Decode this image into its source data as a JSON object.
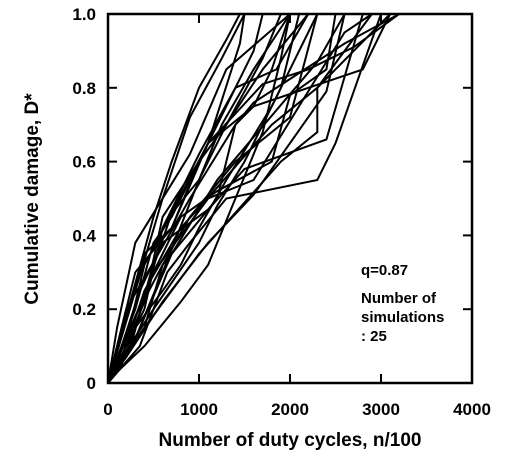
{
  "chart_data": {
    "type": "line",
    "title": "",
    "xlabel": "Number of duty cycles, n/100",
    "ylabel": "Cumulative damage, D*",
    "xlim": [
      0,
      4000
    ],
    "ylim": [
      0,
      1.0
    ],
    "x_ticks": [
      "0",
      "1000",
      "2000",
      "3000",
      "4000"
    ],
    "y_ticks": [
      "0",
      "0.2",
      "0.4",
      "0.6",
      "0.8",
      "1.0"
    ],
    "grid": false,
    "annotations": {
      "q": "q=0.87",
      "sims_line1": "Number of",
      "sims_line2": "simulations",
      "sims_line3": ": 25"
    },
    "series": [
      {
        "x": [
          0,
          100,
          400,
          1000,
          1900,
          2300,
          2300,
          2700,
          3100
        ],
        "y": [
          0,
          0.05,
          0.15,
          0.35,
          0.6,
          0.68,
          0.8,
          0.9,
          1.0
        ]
      },
      {
        "x": [
          0,
          200,
          400,
          800,
          1200,
          1800,
          2300,
          2600,
          2900
        ],
        "y": [
          0,
          0.1,
          0.25,
          0.42,
          0.53,
          0.7,
          0.8,
          0.9,
          1.0
        ]
      },
      {
        "x": [
          0,
          300,
          700,
          1200,
          2300,
          2600
        ],
        "y": [
          0,
          0.12,
          0.35,
          0.55,
          0.87,
          1.0
        ]
      },
      {
        "x": [
          0,
          150,
          400,
          1100,
          1450,
          1500
        ],
        "y": [
          0,
          0.06,
          0.32,
          0.65,
          0.92,
          1.0
        ]
      },
      {
        "x": [
          0,
          400,
          600,
          1000,
          1400,
          1850,
          2200
        ],
        "y": [
          0,
          0.2,
          0.42,
          0.62,
          0.8,
          0.85,
          1.0
        ]
      },
      {
        "x": [
          0,
          100,
          300,
          900,
          1300,
          2000
        ],
        "y": [
          0,
          0.15,
          0.38,
          0.62,
          0.85,
          1.0
        ]
      },
      {
        "x": [
          0,
          300,
          600,
          900,
          1250,
          1500
        ],
        "y": [
          0,
          0.25,
          0.5,
          0.72,
          0.88,
          1.0
        ]
      },
      {
        "x": [
          0,
          500,
          700,
          1000,
          1300,
          1450
        ],
        "y": [
          0,
          0.45,
          0.6,
          0.8,
          0.93,
          1.0
        ]
      },
      {
        "x": [
          0,
          200,
          400,
          600,
          1000,
          1300,
          1600,
          1700
        ],
        "y": [
          0,
          0.1,
          0.22,
          0.45,
          0.6,
          0.75,
          0.9,
          1.0
        ]
      },
      {
        "x": [
          0,
          200,
          500,
          800,
          1200,
          1800,
          2000,
          2400,
          2500
        ],
        "y": [
          0,
          0.08,
          0.3,
          0.45,
          0.52,
          0.6,
          0.78,
          0.85,
          1.0
        ]
      },
      {
        "x": [
          0,
          300,
          600,
          1000,
          1250,
          1600,
          2000
        ],
        "y": [
          0,
          0.12,
          0.3,
          0.55,
          0.7,
          0.85,
          1.0
        ]
      },
      {
        "x": [
          0,
          300,
          700,
          1000,
          1300,
          1700,
          2200
        ],
        "y": [
          0,
          0.3,
          0.42,
          0.6,
          0.7,
          0.85,
          1.0
        ]
      },
      {
        "x": [
          0,
          150,
          300,
          600,
          800,
          1000,
          1300,
          1800,
          2300
        ],
        "y": [
          0,
          0.05,
          0.15,
          0.25,
          0.32,
          0.42,
          0.55,
          0.75,
          1.0
        ]
      },
      {
        "x": [
          0,
          400,
          600,
          1200,
          1400,
          1600,
          2600,
          3200
        ],
        "y": [
          0,
          0.15,
          0.32,
          0.5,
          0.7,
          0.76,
          0.92,
          1.0
        ]
      },
      {
        "x": [
          0,
          200,
          600,
          900,
          1100,
          1400,
          1600,
          1800,
          2000
        ],
        "y": [
          0,
          0.2,
          0.37,
          0.5,
          0.58,
          0.7,
          0.75,
          0.85,
          1.0
        ]
      },
      {
        "x": [
          0,
          100,
          500,
          1000,
          1200,
          1500,
          1900,
          2100
        ],
        "y": [
          0,
          0.05,
          0.2,
          0.38,
          0.48,
          0.6,
          0.8,
          1.0
        ]
      },
      {
        "x": [
          0,
          250,
          450,
          700,
          1000,
          1300,
          1700,
          1900
        ],
        "y": [
          0,
          0.1,
          0.28,
          0.46,
          0.55,
          0.7,
          0.88,
          1.0
        ]
      },
      {
        "x": [
          0,
          200,
          600,
          1100,
          1600,
          2400,
          2600
        ],
        "y": [
          0,
          0.07,
          0.22,
          0.38,
          0.51,
          0.79,
          1.0
        ]
      },
      {
        "x": [
          0,
          350,
          650,
          900,
          1300,
          2300,
          2500,
          2900,
          3000
        ],
        "y": [
          0,
          0.1,
          0.3,
          0.38,
          0.5,
          0.55,
          0.65,
          0.93,
          1.0
        ]
      },
      {
        "x": [
          0,
          100,
          400,
          800,
          1100,
          1700,
          1900,
          2000
        ],
        "y": [
          0,
          0.03,
          0.1,
          0.22,
          0.32,
          0.68,
          0.88,
          1.0
        ]
      },
      {
        "x": [
          0,
          200,
          400,
          700,
          1100,
          1700,
          2200,
          2700,
          3200
        ],
        "y": [
          0,
          0.18,
          0.35,
          0.42,
          0.65,
          0.81,
          0.85,
          0.91,
          1.0
        ]
      },
      {
        "x": [
          0,
          300,
          500,
          700,
          900,
          1100,
          1600,
          2800,
          3100
        ],
        "y": [
          0,
          0.2,
          0.38,
          0.45,
          0.55,
          0.65,
          0.75,
          0.85,
          1.0
        ]
      },
      {
        "x": [
          0,
          250,
          500,
          800,
          1100,
          1600,
          2600,
          2900
        ],
        "y": [
          0,
          0.15,
          0.3,
          0.4,
          0.5,
          0.55,
          0.95,
          1.0
        ]
      },
      {
        "x": [
          0,
          150,
          350,
          600,
          1100,
          1500,
          2400,
          2800
        ],
        "y": [
          0,
          0.1,
          0.25,
          0.38,
          0.47,
          0.58,
          0.66,
          1.0
        ]
      },
      {
        "x": [
          0,
          100,
          300,
          600,
          900,
          1400,
          2000,
          2300
        ],
        "y": [
          0,
          0.06,
          0.18,
          0.32,
          0.45,
          0.6,
          0.72,
          1.0
        ]
      }
    ]
  }
}
